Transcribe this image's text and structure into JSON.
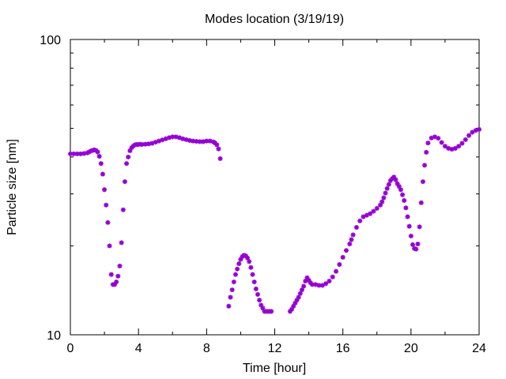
{
  "chart_data": {
    "type": "scatter",
    "title": "Modes location (3/19/19)",
    "xlabel": "Time [hour]",
    "ylabel": "Particle size [nm]",
    "xlim": [
      0,
      24
    ],
    "ylim": [
      10,
      100
    ],
    "yscale": "log",
    "x_ticks": [
      0,
      4,
      8,
      12,
      16,
      20,
      24
    ],
    "x_tick_labels": [
      "0",
      "4",
      "8",
      "12",
      "16",
      "20",
      "24"
    ],
    "y_tick_labels": [
      "10",
      "100"
    ],
    "grid": false,
    "legend": false,
    "marker": "star",
    "series": [
      {
        "color": "#9400d3",
        "x": [
          0.0,
          0.2,
          0.4,
          0.6,
          0.8,
          1.0,
          1.1,
          1.2,
          1.3,
          1.4,
          1.5,
          1.6,
          1.7,
          1.8,
          1.9,
          2.0,
          2.1,
          2.2,
          2.3,
          2.4,
          2.5,
          2.6,
          2.7,
          2.8,
          2.9,
          3.0,
          3.1,
          3.2,
          3.3,
          3.4,
          3.5,
          3.6,
          3.7,
          3.8,
          3.9,
          4.0,
          4.1,
          4.2,
          4.4,
          4.6,
          4.8,
          5.0,
          5.2,
          5.4,
          5.6,
          5.8,
          6.0,
          6.2,
          6.4,
          6.6,
          6.8,
          7.0,
          7.2,
          7.4,
          7.6,
          7.8,
          8.0,
          8.2,
          8.4,
          8.5,
          8.6,
          8.7,
          8.8,
          9.3,
          9.4,
          9.5,
          9.6,
          9.7,
          9.8,
          9.9,
          10.0,
          10.1,
          10.2,
          10.3,
          10.4,
          10.5,
          10.6,
          10.7,
          10.8,
          10.9,
          11.0,
          11.1,
          11.2,
          11.3,
          11.4,
          11.5,
          11.6,
          11.7,
          11.8,
          12.9,
          13.0,
          13.1,
          13.2,
          13.3,
          13.4,
          13.5,
          13.6,
          13.7,
          13.8,
          13.9,
          14.0,
          14.1,
          14.2,
          14.4,
          14.6,
          14.8,
          15.0,
          15.2,
          15.4,
          15.6,
          15.8,
          16.0,
          16.2,
          16.4,
          16.5,
          16.6,
          16.8,
          17.0,
          17.2,
          17.4,
          17.6,
          17.8,
          18.0,
          18.2,
          18.3,
          18.4,
          18.5,
          18.6,
          18.7,
          18.8,
          18.9,
          19.0,
          19.1,
          19.2,
          19.3,
          19.4,
          19.5,
          19.6,
          19.7,
          19.8,
          19.9,
          20.0,
          20.1,
          20.2,
          20.3,
          20.4,
          20.5,
          20.6,
          20.7,
          20.8,
          20.9,
          21.0,
          21.2,
          21.4,
          21.6,
          21.8,
          22.0,
          22.2,
          22.4,
          22.6,
          22.8,
          23.0,
          23.2,
          23.4,
          23.6,
          23.8,
          24.0
        ],
        "y": [
          41.0,
          41.0,
          41.0,
          41.0,
          41.1,
          41.3,
          41.6,
          41.9,
          42.1,
          42.3,
          42.1,
          41.6,
          40.2,
          38.0,
          35.0,
          31.0,
          27.5,
          24.0,
          20.0,
          16.0,
          14.8,
          14.8,
          15.1,
          15.8,
          17.1,
          20.5,
          26.5,
          33.0,
          38.0,
          40.0,
          42.0,
          43.0,
          43.6,
          44.0,
          44.1,
          44.1,
          44.2,
          44.1,
          44.2,
          44.3,
          44.5,
          44.9,
          45.3,
          45.7,
          46.1,
          46.5,
          46.8,
          46.8,
          46.5,
          46.1,
          45.8,
          45.5,
          45.3,
          45.2,
          45.1,
          45.1,
          45.3,
          45.3,
          45.0,
          44.6,
          44.0,
          42.6,
          39.5,
          12.5,
          13.4,
          14.2,
          15.1,
          16.0,
          16.7,
          17.4,
          18.0,
          18.4,
          18.6,
          18.5,
          18.2,
          17.7,
          16.9,
          16.0,
          15.1,
          14.3,
          13.7,
          13.1,
          12.6,
          12.3,
          12.0,
          12.0,
          12.0,
          12.0,
          12.0,
          12.0,
          12.2,
          12.5,
          12.8,
          13.1,
          13.4,
          13.8,
          14.2,
          14.6,
          15.2,
          15.6,
          15.3,
          15.0,
          14.8,
          14.8,
          14.7,
          14.7,
          14.9,
          15.2,
          15.7,
          16.4,
          17.3,
          18.3,
          19.3,
          20.3,
          21.0,
          21.8,
          23.1,
          24.3,
          25.1,
          25.4,
          25.7,
          26.2,
          26.8,
          27.5,
          28.2,
          29.1,
          30.2,
          31.3,
          32.3,
          33.3,
          33.8,
          34.2,
          33.5,
          32.5,
          31.8,
          31.0,
          29.8,
          28.5,
          26.9,
          25.1,
          23.3,
          21.6,
          20.2,
          19.6,
          19.5,
          20.3,
          23.2,
          28.0,
          33.0,
          37.5,
          41.5,
          44.6,
          46.4,
          46.8,
          46.3,
          44.8,
          43.5,
          42.8,
          42.5,
          42.8,
          43.5,
          44.5,
          45.8,
          47.3,
          48.5,
          49.2,
          49.6
        ]
      }
    ]
  }
}
